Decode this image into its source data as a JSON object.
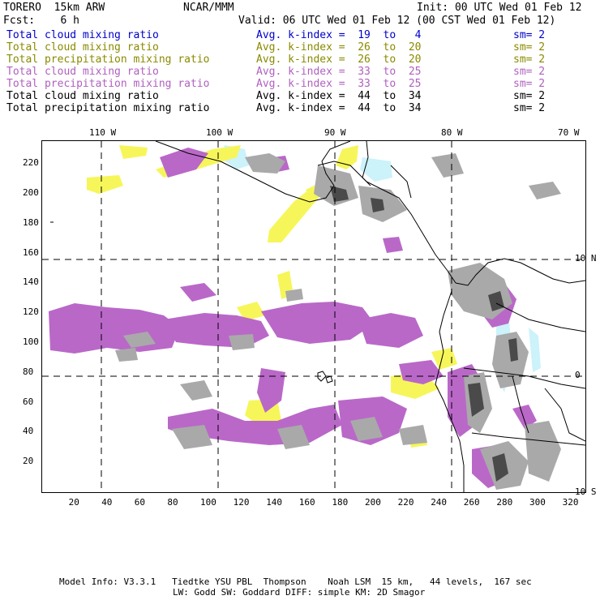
{
  "header": {
    "model": "TORERO  15km ARW",
    "center": "NCAR/MMM",
    "init": "Init: 00 UTC Wed 01 Feb 12",
    "fcst": "Fcst:    6 h",
    "valid": "Valid: 06 UTC Wed 01 Feb 12 (00 CST Wed 01 Feb 12)"
  },
  "legend": [
    {
      "field": "Total cloud mixing ratio",
      "kindex": "Avg. k-index =  19  to   4",
      "sm": "sm= 2",
      "color": "#0000cc"
    },
    {
      "field": "Total cloud mixing ratio",
      "kindex": "Avg. k-index =  26  to  20",
      "sm": "sm= 2",
      "color": "#8a8a00"
    },
    {
      "field": "Total precipitation mixing ratio",
      "kindex": "Avg. k-index =  26  to  20",
      "sm": "sm= 2",
      "color": "#8a8a00"
    },
    {
      "field": "Total cloud mixing ratio",
      "kindex": "Avg. k-index =  33  to  25",
      "sm": "sm= 2",
      "color": "#b060c0"
    },
    {
      "field": "Total precipitation mixing ratio",
      "kindex": "Avg. k-index =  33  to  25",
      "sm": "sm= 2",
      "color": "#b060c0"
    },
    {
      "field": "Total cloud mixing ratio",
      "kindex": "Avg. k-index =  44  to  34",
      "sm": "sm= 2",
      "color": "#000000"
    },
    {
      "field": "Total precipitation mixing ratio",
      "kindex": "Avg. k-index =  44  to  34",
      "sm": "sm= 2",
      "color": "#000000"
    }
  ],
  "top_ticks": [
    "110 W",
    "100 W",
    "90 W",
    "80 W",
    "70 W"
  ],
  "right_ticks": [
    "10 N",
    "0",
    "10 S"
  ],
  "left_ticks": [
    "220",
    "200",
    "180",
    "160",
    "140",
    "120",
    "100",
    "80",
    "60",
    "40",
    "20"
  ],
  "bottom_ticks": [
    "20",
    "40",
    "60",
    "80",
    "100",
    "120",
    "140",
    "160",
    "180",
    "200",
    "220",
    "240",
    "260",
    "280",
    "300",
    "320"
  ],
  "footer": {
    "line1": "Model Info: V3.3.1   Tiedtke YSU PBL  Thompson    Noah LSM  15 km,   44 levels,  167 sec",
    "line2": "LW: Godd SW: Goddard DIFF: simple KM: 2D Smagor"
  },
  "colors": {
    "cyan": "#ccf2fa",
    "yellow": "#f6f65a",
    "purple": "#b968c8",
    "gray": "#a9a9a9",
    "darkgray": "#4a4a4a"
  }
}
